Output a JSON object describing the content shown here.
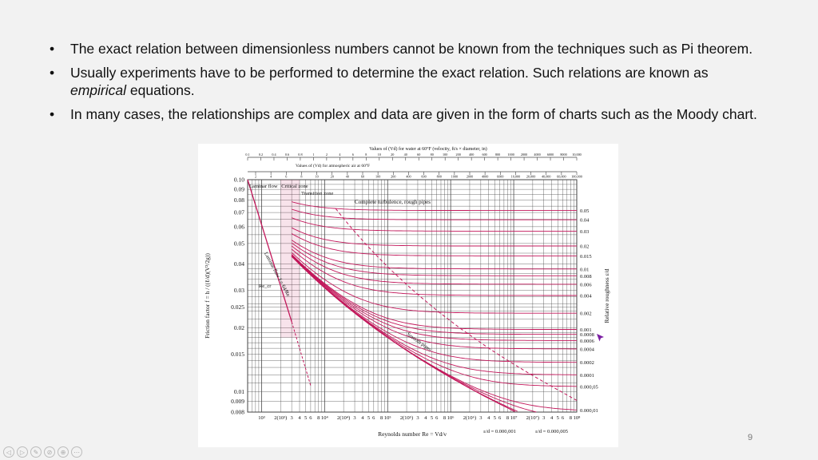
{
  "slide": {
    "bullets": [
      {
        "text": "The exact relation between dimensionless numbers cannot be known from the techniques such as Pi theorem."
      },
      {
        "pre": "Usually experiments have to be performed to determine the exact relation. Such relations are known as ",
        "em": "empirical",
        "post": " equations."
      },
      {
        "text": "In many cases, the relationships are complex and data are given in the form of charts such as the Moody chart."
      }
    ],
    "bullet_symbol": "•",
    "page_number": "9",
    "nav_icons": [
      "prev-icon",
      "next-icon",
      "edit-icon",
      "pen-icon",
      "zoom-icon",
      "more-icon"
    ],
    "nav_glyphs": [
      "◁",
      "▷",
      "✎",
      "⊘",
      "⊕",
      "⋯"
    ]
  },
  "chart_data": {
    "type": "line",
    "title": "Values of (Vd) for water at 60°F (velocity, ft/s × diameter, in)",
    "subtitle": "Values of (Vd) for atmospheric air at 60°F",
    "top_axis_water_ticks": [
      "0.1",
      "0.2",
      "0.4",
      "0.6",
      "0.8",
      "1",
      "2",
      "4",
      "6",
      "8",
      "10",
      "20",
      "40",
      "60",
      "80",
      "100",
      "200",
      "400",
      "600",
      "800",
      "1000",
      "2000",
      "4000",
      "6000",
      "8000",
      "10,000"
    ],
    "top_axis_air_ticks": [
      "2",
      "4",
      "6",
      "8",
      "10",
      "20",
      "40",
      "60",
      "100",
      "200",
      "400",
      "600",
      "800",
      "1000",
      "2000",
      "4000",
      "6000",
      "10,000",
      "20,000",
      "40,000",
      "60,000",
      "100,000"
    ],
    "xlabel": "Reynolds number Re = Vd/ν",
    "ylabel": "Friction factor f = h / ((ℓ/d)(V²/2g))",
    "y2label": "Relative roughness ε/d",
    "x_scale": "log",
    "y_scale": "log",
    "xlim": [
      600,
      100000000
    ],
    "ylim": [
      0.008,
      0.1
    ],
    "x_ticks": [
      "10³",
      "2(10³)",
      "3",
      "4",
      "5",
      "6",
      "8",
      "10⁴",
      "2(10⁴)",
      "3",
      "4",
      "5",
      "6",
      "8",
      "10⁵",
      "2(10⁵)",
      "3",
      "4",
      "5",
      "6",
      "8",
      "10⁶",
      "2(10⁶)",
      "3",
      "4",
      "5",
      "6",
      "8",
      "10⁷",
      "2(10⁷)",
      "3",
      "4",
      "5",
      "6",
      "8",
      "10⁸"
    ],
    "y_ticks": [
      "0.10",
      "0.09",
      "0.08",
      "0.07",
      "0.06",
      "0.05",
      "0.04",
      "0.03",
      "0.025",
      "0.02",
      "0.015",
      "0.01",
      "0.009",
      "0.008"
    ],
    "roughness_labels": [
      "0.05",
      "0.04",
      "0.03",
      "0.02",
      "0.015",
      "0.01",
      "0.008",
      "0.006",
      "0.004",
      "0.002",
      "0.001",
      "0.0008",
      "0.0006",
      "0.0004",
      "0.0002",
      "0.0001",
      "0.000,05",
      "0.000,01"
    ],
    "roughness_values": [
      0.05,
      0.04,
      0.03,
      0.02,
      0.015,
      0.01,
      0.008,
      0.006,
      0.004,
      0.002,
      0.001,
      0.0008,
      0.0006,
      0.0004,
      0.0002,
      0.0001,
      5e-05,
      1e-05,
      5e-06,
      1e-06
    ],
    "region_labels": [
      "Laminar flow",
      "Critical zone",
      "Transition zone",
      "Complete turbulence, rough pipes"
    ],
    "annotations": [
      "Laminar flow f = 64/Re",
      "Re_cr",
      "Smooth pipes",
      "ε/d = 0.000,001",
      "ε/d = 0.000,005"
    ],
    "laminar_line": {
      "name": "Laminar flow",
      "formula": "f = 64/Re"
    },
    "grid": true,
    "colors": {
      "curves": "#c2185b",
      "grid": "#444444",
      "laminar": "#c2185b",
      "text": "#111111",
      "cursor": "#7b1fa2"
    }
  }
}
